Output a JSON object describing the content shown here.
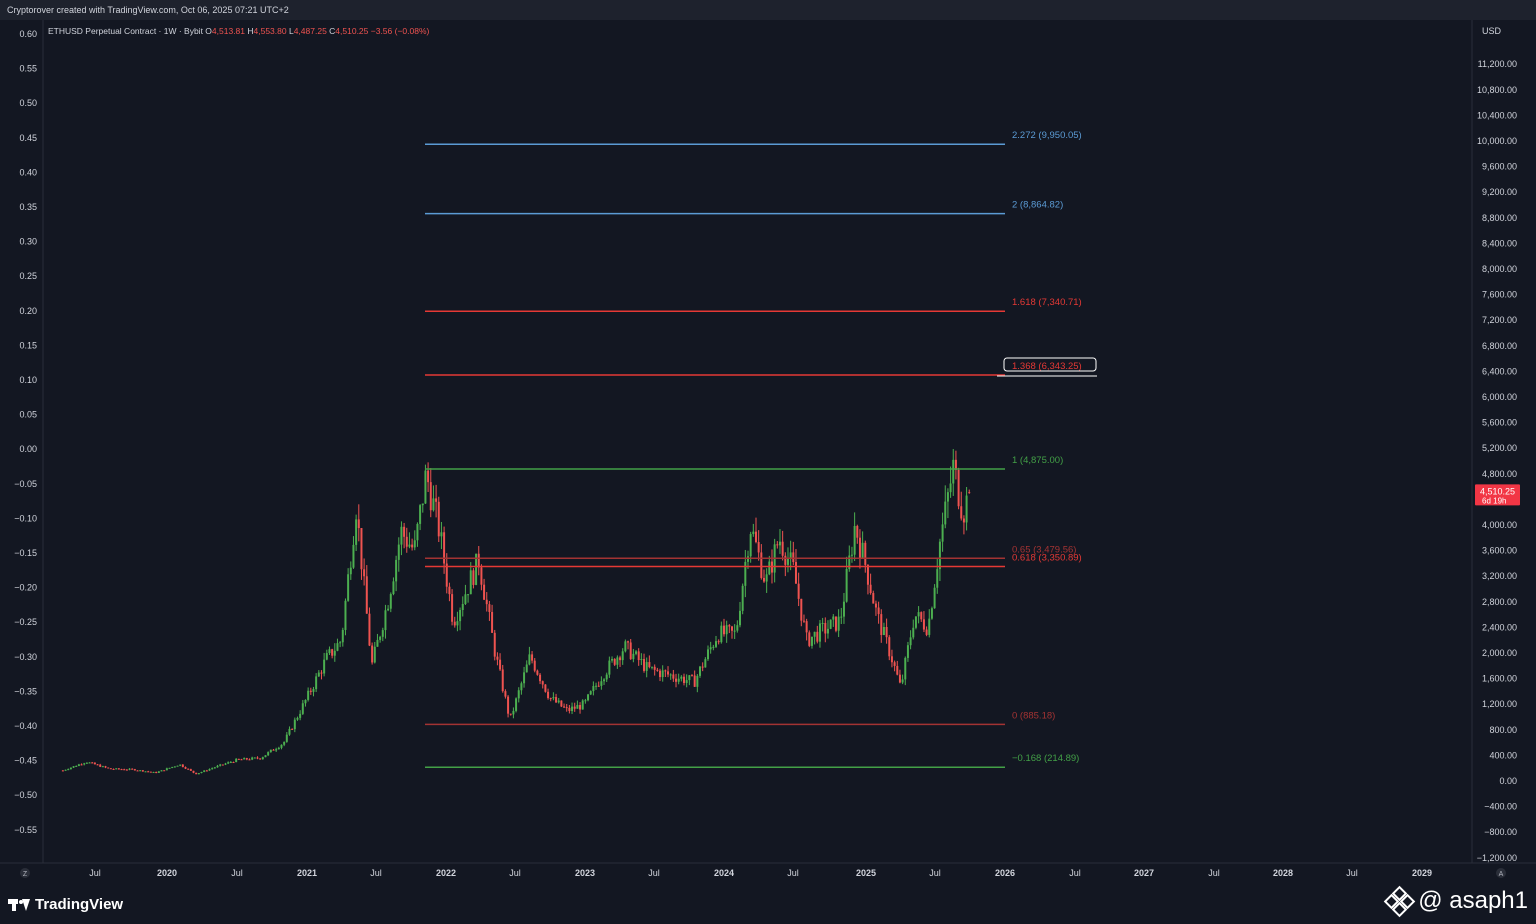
{
  "header": {
    "author": "Cryptorover created with TradingView.com, Oct 06, 2025 07:21 UTC+2",
    "symbol": "ETHUSD Perpetual Contract · 1W · Bybit",
    "ohlc": [
      {
        "k": "O",
        "v": "4,513.81"
      },
      {
        "k": "H",
        "v": "4,553.80"
      },
      {
        "k": "L",
        "v": "4,487.25"
      },
      {
        "k": "C",
        "v": "4,510.25"
      }
    ],
    "change": "−3.56 (−0.08%)"
  },
  "colors": {
    "background": "#131722",
    "up": "#26a69a",
    "up_bright": "#4caf50",
    "down": "#ef5350",
    "fib_blue": "#5b9bd5",
    "fib_red": "#e53935",
    "fib_green": "#43a047",
    "fib_dark_red": "#a33333",
    "price_badge": "#f23645"
  },
  "chart_data": {
    "type": "candlestick",
    "currency_label": "USD",
    "price_axis": {
      "range": [
        -1200,
        12100
      ],
      "ticks": [
        "11,200.00",
        "10,800.00",
        "10,400.00",
        "10,000.00",
        "9,600.00",
        "9,200.00",
        "8,800.00",
        "8,400.00",
        "8,000.00",
        "7,600.00",
        "7,200.00",
        "6,800.00",
        "6,400.00",
        "6,000.00",
        "5,600.00",
        "5,200.00",
        "4,800.00",
        "4,400.00",
        "4,000.00",
        "3,600.00",
        "3,200.00",
        "2,800.00",
        "2,400.00",
        "2,000.00",
        "1,600.00",
        "1,200.00",
        "800.00",
        "400.00",
        "0.00",
        "−400.00",
        "−800.00",
        "−1,200.00"
      ],
      "tick_values": [
        11200,
        10800,
        10400,
        10000,
        9600,
        9200,
        8800,
        8400,
        8000,
        7600,
        7200,
        6800,
        6400,
        6000,
        5600,
        5200,
        4800,
        4400,
        4000,
        3600,
        3200,
        2800,
        2400,
        2000,
        1600,
        1200,
        800,
        400,
        0,
        -400,
        -800,
        -1200
      ]
    },
    "left_axis": {
      "ticks": [
        "0.60",
        "0.55",
        "0.50",
        "0.45",
        "0.40",
        "0.35",
        "0.30",
        "0.25",
        "0.20",
        "0.15",
        "0.10",
        "0.05",
        "0.00",
        "−0.05",
        "−0.10",
        "−0.15",
        "−0.20",
        "−0.25",
        "−0.30",
        "−0.35",
        "−0.40",
        "−0.45",
        "−0.50",
        "−0.55"
      ]
    },
    "time_axis": {
      "labels": [
        "Jul",
        "2020",
        "Jul",
        "2021",
        "Jul",
        "2022",
        "Jul",
        "2023",
        "Jul",
        "2024",
        "Jul",
        "2025",
        "Jul",
        "2026",
        "Jul",
        "2027",
        "Jul",
        "2028",
        "Jul",
        "2029"
      ],
      "bold": [
        false,
        true,
        false,
        true,
        false,
        true,
        false,
        true,
        false,
        true,
        false,
        true,
        false,
        true,
        false,
        true,
        false,
        true,
        false,
        true
      ]
    },
    "last_price": {
      "value": 4510.25,
      "label": "4,510.25",
      "countdown": "6d 19h"
    },
    "fib_levels": [
      {
        "ratio": 2.272,
        "price": 9950.05,
        "label": "2.272 (9,950.05)",
        "color": "#5b9bd5"
      },
      {
        "ratio": 2,
        "price": 8864.82,
        "label": "2 (8,864.82)",
        "color": "#5b9bd5"
      },
      {
        "ratio": 1.618,
        "price": 7340.71,
        "label": "1.618 (7,340.71)",
        "color": "#e53935"
      },
      {
        "ratio": 1.368,
        "price": 6343.25,
        "label": "1.368 (6,343.25)",
        "color": "#e53935",
        "highlighted": true
      },
      {
        "ratio": 1,
        "price": 4875.0,
        "label": "1 (4,875.00)",
        "color": "#43a047"
      },
      {
        "ratio": 0.65,
        "price": 3479.56,
        "label": "0.65 (3,479.56)",
        "color": "#a33333"
      },
      {
        "ratio": 0.618,
        "price": 3350.89,
        "label": "0.618 (3,350.89)",
        "color": "#e53935"
      },
      {
        "ratio": 0,
        "price": 885.18,
        "label": "0 (885.18)",
        "color": "#a33333"
      },
      {
        "ratio": -0.168,
        "price": 214.89,
        "label": "−0.168 (214.89)",
        "color": "#43a047"
      }
    ],
    "price_path_monthly": [
      [
        "2019-04-01",
        165
      ],
      [
        "2019-06-01",
        300
      ],
      [
        "2019-08-01",
        190
      ],
      [
        "2019-10-01",
        180
      ],
      [
        "2019-12-01",
        130
      ],
      [
        "2020-02-01",
        260
      ],
      [
        "2020-03-15",
        110
      ],
      [
        "2020-05-01",
        210
      ],
      [
        "2020-07-01",
        330
      ],
      [
        "2020-09-01",
        360
      ],
      [
        "2020-11-01",
        600
      ],
      [
        "2021-01-01",
        1300
      ],
      [
        "2021-02-20",
        1900
      ],
      [
        "2021-04-01",
        2200
      ],
      [
        "2021-05-10",
        4300
      ],
      [
        "2021-06-20",
        1800
      ],
      [
        "2021-08-01",
        2800
      ],
      [
        "2021-09-05",
        3900
      ],
      [
        "2021-10-10",
        3600
      ],
      [
        "2021-11-10",
        4800
      ],
      [
        "2021-12-15",
        3900
      ],
      [
        "2022-01-20",
        2500
      ],
      [
        "2022-03-28",
        3450
      ],
      [
        "2022-05-10",
        2000
      ],
      [
        "2022-06-18",
        950
      ],
      [
        "2022-08-10",
        1950
      ],
      [
        "2022-10-01",
        1300
      ],
      [
        "2022-11-15",
        1100
      ],
      [
        "2022-12-31",
        1200
      ],
      [
        "2023-02-15",
        1650
      ],
      [
        "2023-04-15",
        2100
      ],
      [
        "2023-06-15",
        1750
      ],
      [
        "2023-08-15",
        1650
      ],
      [
        "2023-10-15",
        1550
      ],
      [
        "2023-12-15",
        2300
      ],
      [
        "2024-02-01",
        2300
      ],
      [
        "2024-03-10",
        4000
      ],
      [
        "2024-04-20",
        3100
      ],
      [
        "2024-05-25",
        3800
      ],
      [
        "2024-07-01",
        3300
      ],
      [
        "2024-08-05",
        2200
      ],
      [
        "2024-09-15",
        2350
      ],
      [
        "2024-11-01",
        2500
      ],
      [
        "2024-12-10",
        4000
      ],
      [
        "2025-01-10",
        3300
      ],
      [
        "2025-02-05",
        2600
      ],
      [
        "2025-03-15",
        1950
      ],
      [
        "2025-04-09",
        1450
      ],
      [
        "2025-05-15",
        2600
      ],
      [
        "2025-06-20",
        2400
      ],
      [
        "2025-07-20",
        3700
      ],
      [
        "2025-08-25",
        4900
      ],
      [
        "2025-09-20",
        4200
      ],
      [
        "2025-10-06",
        4510
      ]
    ]
  },
  "footer": {
    "brand": "TradingView",
    "watermark": "@ asaph1"
  },
  "corner_labels": {
    "left": "Z",
    "right": "A"
  }
}
